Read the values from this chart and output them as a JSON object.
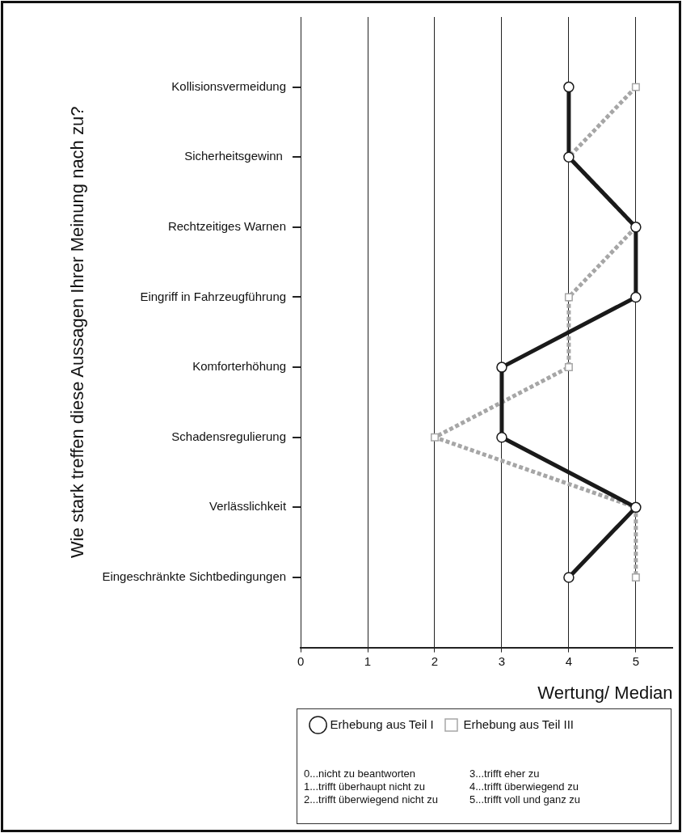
{
  "chart_data": {
    "type": "line",
    "ylabel": "Wie stark treffen diese Aussagen Ihrer Meinung nach zu?",
    "xlabel": "Wertung/ Median",
    "categories": [
      "Kollisionsvermeidung",
      "Sicherheitsgewinn ",
      "Rechtzeitiges Warnen",
      "Eingriff in Fahrzeugführung",
      "Komforterhöhung",
      "Schadensregulierung",
      "Verlässlichkeit",
      "Eingeschränkte Sichtbedingungen"
    ],
    "series": [
      {
        "name": "Erhebung aus Teil I",
        "color": "#1a1a1a",
        "marker": "circle",
        "line_style": "solid",
        "values": [
          4,
          4,
          5,
          5,
          3,
          3,
          5,
          4
        ]
      },
      {
        "name": "Erhebung aus Teil III",
        "color": "#a6a6a6",
        "marker": "square",
        "line_style": "dotted",
        "values": [
          5,
          4,
          5,
          4,
          4,
          2,
          5,
          5
        ]
      }
    ],
    "orientation": "horizontal",
    "xlim": [
      0,
      5.55
    ],
    "xticks": [
      0,
      1,
      2,
      3,
      4,
      5
    ],
    "grid": "x",
    "legend": "bottom",
    "annotations": [
      "0...nicht zu beantworten",
      "3...trifft eher zu",
      "1...trifft überhaupt nicht zu",
      "4...trifft überwiegend zu",
      "2...trifft überwiegend nicht zu",
      "5...trifft voll und ganz zu"
    ]
  }
}
